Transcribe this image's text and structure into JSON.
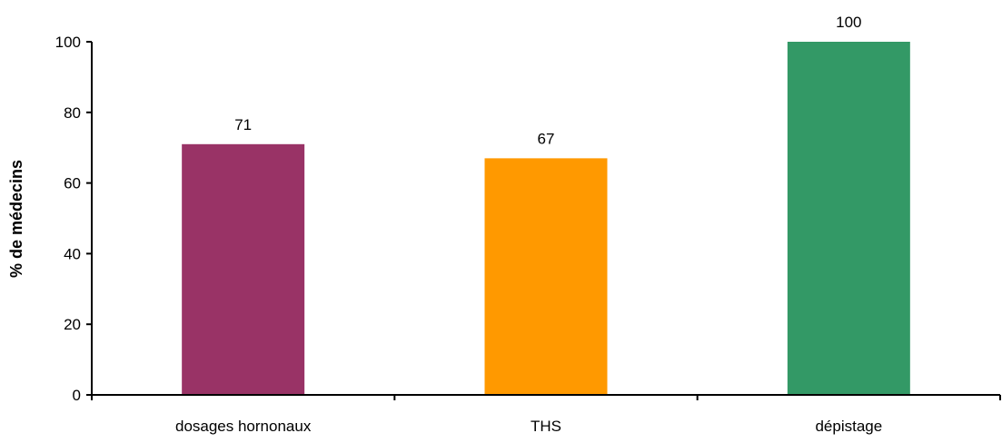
{
  "chart_data": {
    "type": "bar",
    "title": "",
    "xlabel": "",
    "ylabel": "% de médecins",
    "categories": [
      "dosages hornonaux",
      "THS",
      "dépistage"
    ],
    "values": [
      71,
      67,
      100
    ],
    "data_labels": [
      "71",
      "67",
      "100"
    ],
    "colors": [
      "#993366",
      "#FF9900",
      "#339966"
    ],
    "ylim": [
      0,
      100
    ],
    "yticks": [
      0,
      20,
      40,
      60,
      80,
      100
    ],
    "ytick_labels": [
      "0",
      "20",
      "40",
      "60",
      "80",
      "100"
    ],
    "grid": false,
    "legend": "none"
  }
}
